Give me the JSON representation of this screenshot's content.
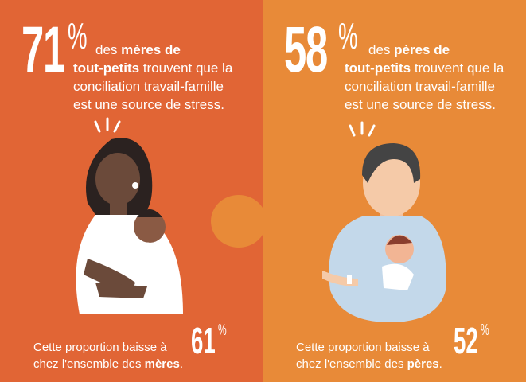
{
  "colors": {
    "mothers_panel": "#E16535",
    "fathers_panel": "#E88A38"
  },
  "mothers": {
    "stat": "71",
    "percent_sign": "%",
    "line1_a": "des ",
    "line1_b": "mères de",
    "line2_a": "tout-petits",
    "line2_b": " trouvent que la",
    "line3": "conciliation travail-famille",
    "line4": "est une source de stress.",
    "bottom_a": "Cette proportion baisse à",
    "bottom_stat": "61",
    "bottom_pct": "%",
    "bottom_b": "chez l'ensemble des ",
    "bottom_bold": "mères",
    "bottom_end": "."
  },
  "fathers": {
    "stat": "58",
    "percent_sign": "%",
    "line1_a": "des ",
    "line1_b": "pères de",
    "line2_a": "tout-petits",
    "line2_b": " trouvent que la",
    "line3": "conciliation travail-famille",
    "line4": "est une source de stress.",
    "bottom_a": "Cette proportion baisse à",
    "bottom_stat": "52",
    "bottom_pct": "%",
    "bottom_b": "chez l'ensemble des ",
    "bottom_bold": "pères",
    "bottom_end": "."
  }
}
